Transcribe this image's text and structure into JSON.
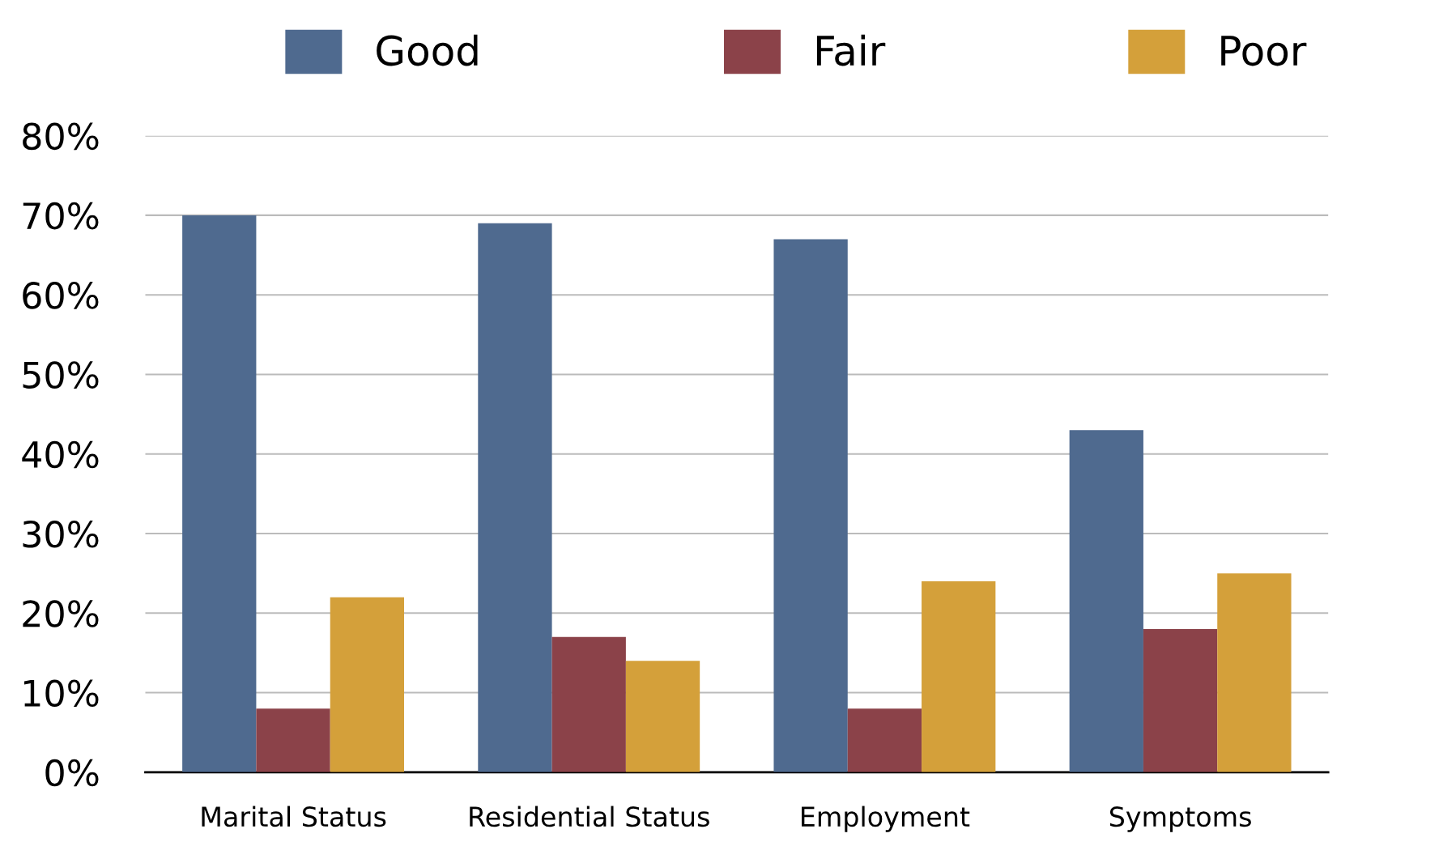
{
  "chart_data": {
    "type": "bar",
    "categories": [
      "Marital Status",
      "Residential Status",
      "Employment",
      "Symptoms"
    ],
    "series": [
      {
        "name": "Good",
        "color": "#4f6a8f",
        "values": [
          70,
          69,
          67,
          43
        ]
      },
      {
        "name": "Fair",
        "color": "#8b4249",
        "values": [
          8,
          17,
          8,
          18
        ]
      },
      {
        "name": "Poor",
        "color": "#d4a03a",
        "values": [
          22,
          14,
          24,
          25
        ]
      }
    ],
    "ylim": [
      0,
      80
    ],
    "yticks": [
      {
        "value": 0,
        "label": "0%"
      },
      {
        "value": 10,
        "label": "10%"
      },
      {
        "value": 20,
        "label": "20%"
      },
      {
        "value": 30,
        "label": "30%"
      },
      {
        "value": 40,
        "label": "40%"
      },
      {
        "value": 50,
        "label": "50%"
      },
      {
        "value": 60,
        "label": "60%"
      },
      {
        "value": 70,
        "label": "70%"
      },
      {
        "value": 80,
        "label": "80%"
      }
    ],
    "grid": "y",
    "legend": "top"
  }
}
